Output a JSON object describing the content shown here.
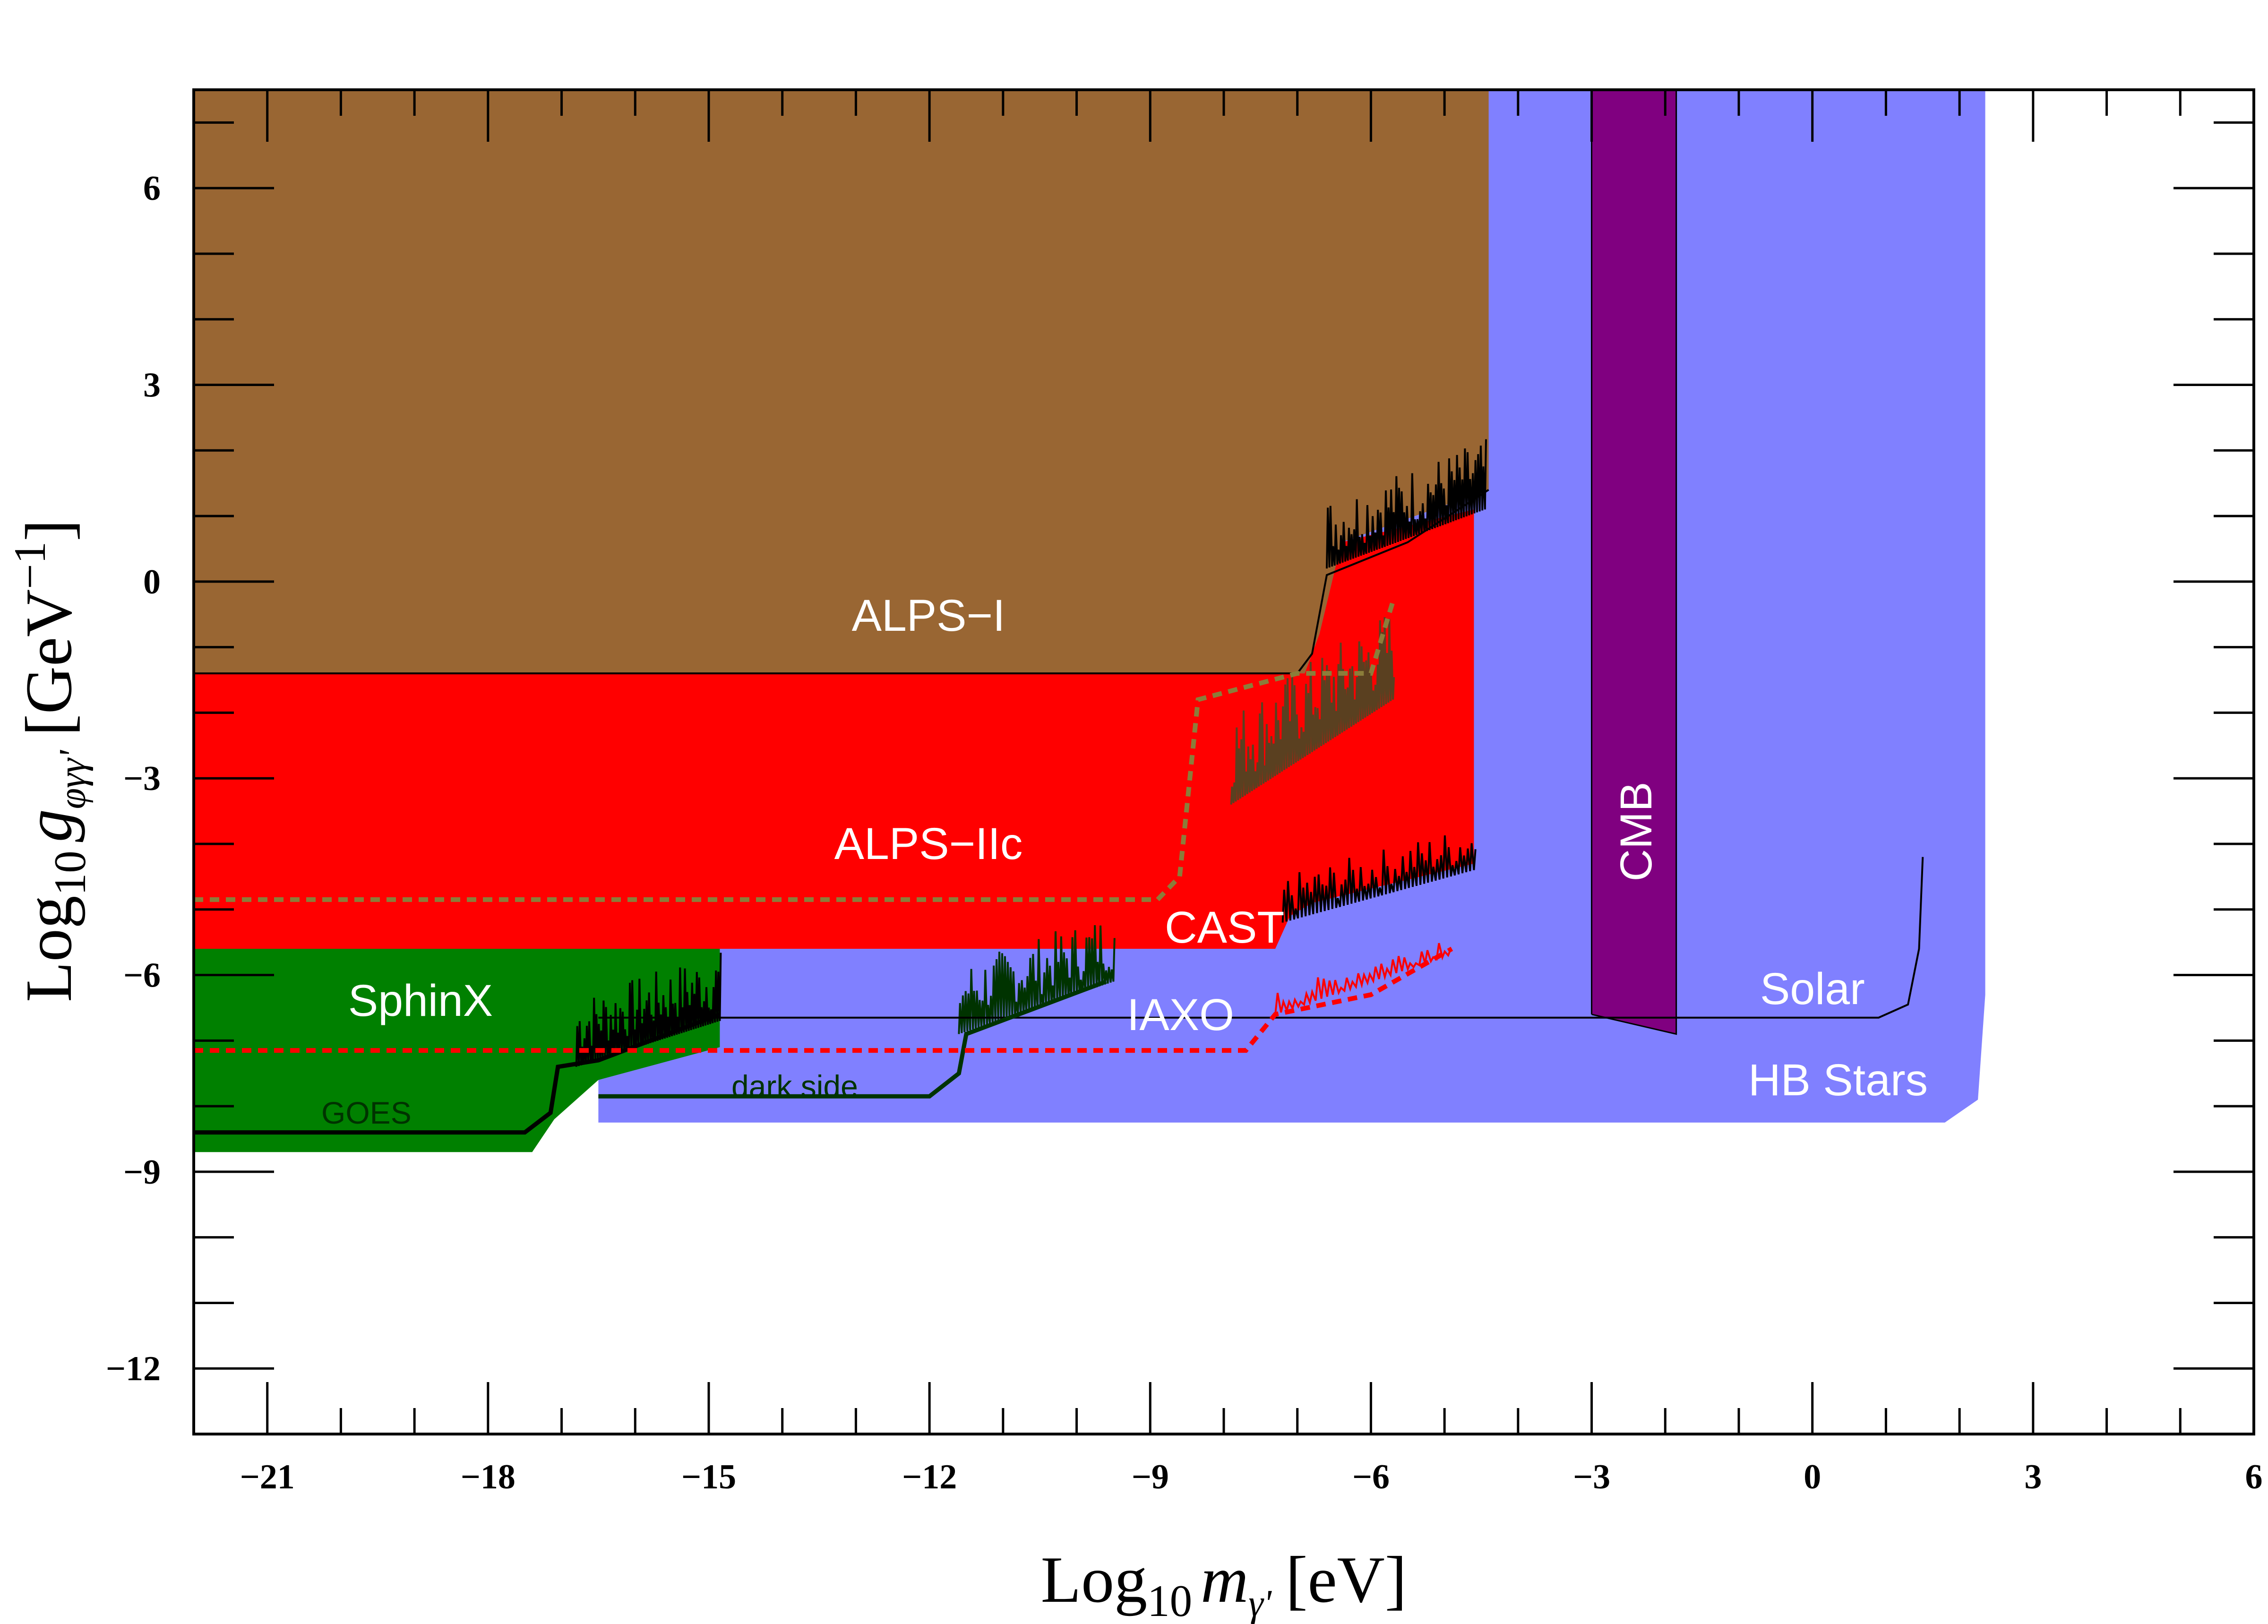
{
  "chart_data": {
    "type": "area",
    "title": "",
    "xlabel": {
      "prefix": "Log",
      "sub": "10",
      "var": "m",
      "varsub": "γ'",
      "unit": "[eV]"
    },
    "ylabel": {
      "prefix": "Log",
      "sub": "10",
      "var": "g",
      "varsub": "φγγ'",
      "unit_open": "[GeV",
      "unit_exp": "−1",
      "unit_close": "]"
    },
    "xlim": [
      -22,
      6
    ],
    "ylim": [
      -13,
      7.5
    ],
    "x_ticks": [
      {
        "value": -21,
        "label": "−21"
      },
      {
        "value": -18,
        "label": "−18"
      },
      {
        "value": -15,
        "label": "−15"
      },
      {
        "value": -12,
        "label": "−12"
      },
      {
        "value": -9,
        "label": "−9"
      },
      {
        "value": -6,
        "label": "−6"
      },
      {
        "value": -3,
        "label": "−3"
      },
      {
        "value": 0,
        "label": "0"
      },
      {
        "value": 3,
        "label": "3"
      },
      {
        "value": 6,
        "label": "6"
      }
    ],
    "y_ticks": [
      {
        "value": 6,
        "label": "6"
      },
      {
        "value": 3,
        "label": "3"
      },
      {
        "value": 0,
        "label": "0"
      },
      {
        "value": -3,
        "label": "−3"
      },
      {
        "value": -6,
        "label": "−6"
      },
      {
        "value": -9,
        "label": "−9"
      },
      {
        "value": -12,
        "label": "−12"
      }
    ],
    "regions": [
      {
        "name": "HB Stars",
        "color": "#8080ff",
        "polygon": [
          [
            -16.5,
            7.5
          ],
          [
            2.35,
            7.5
          ],
          [
            2.35,
            -6.3
          ],
          [
            2.25,
            -7.9
          ],
          [
            1.8,
            -8.25
          ],
          [
            -16.5,
            -8.25
          ]
        ]
      },
      {
        "name": "ALPS-I",
        "color": "#996633",
        "polygon": [
          [
            -22,
            7.5
          ],
          [
            -4.4,
            7.5
          ],
          [
            -4.4,
            1.4
          ],
          [
            -6.4,
            0.6
          ],
          [
            -6.7,
            -0.8
          ],
          [
            -6.9,
            -1.4
          ],
          [
            -22,
            -1.4
          ]
        ]
      },
      {
        "name": "ALPS-IIc",
        "color": "#ff0000",
        "polygon": [
          [
            -22,
            -1.4
          ],
          [
            -6.9,
            -1.4
          ],
          [
            -6.7,
            -0.8
          ],
          [
            -6.4,
            0.6
          ],
          [
            -4.6,
            1.1
          ],
          [
            -4.6,
            -4.3
          ],
          [
            -6.8,
            -4.9
          ],
          [
            -7.1,
            -5.1
          ],
          [
            -7.3,
            -5.6
          ],
          [
            -22,
            -5.6
          ]
        ]
      },
      {
        "name": "SphinX",
        "color": "#008000",
        "polygon": [
          [
            -22,
            -5.6
          ],
          [
            -14.85,
            -5.6
          ],
          [
            -14.85,
            -7.1
          ],
          [
            -16.5,
            -7.6
          ],
          [
            -17.1,
            -8.2
          ],
          [
            -17.4,
            -8.7
          ],
          [
            -22,
            -8.7
          ]
        ]
      },
      {
        "name": "CMB",
        "color": "#800080",
        "polygon": [
          [
            -3,
            7.5
          ],
          [
            -1.85,
            7.5
          ],
          [
            -1.85,
            -6.9
          ],
          [
            -3,
            -6.6
          ]
        ]
      }
    ],
    "series": [
      {
        "name": "CAST",
        "color": "#000000",
        "style": "solid",
        "points": [
          [
            -22,
            -1.4
          ],
          [
            -7.0,
            -1.4
          ],
          [
            -6.8,
            -1.1
          ],
          [
            -6.6,
            0.1
          ],
          [
            -5.5,
            0.6
          ],
          [
            -4.4,
            1.4
          ]
        ]
      },
      {
        "name": "Solar",
        "color": "#000000",
        "style": "solid",
        "points": [
          [
            -16.5,
            -6.65
          ],
          [
            0.9,
            -6.65
          ],
          [
            1.3,
            -6.45
          ],
          [
            1.45,
            -5.6
          ],
          [
            1.5,
            -4.2
          ]
        ]
      },
      {
        "name": "GOES",
        "color": "#000000",
        "style": "solid",
        "points": [
          [
            -22,
            -8.4
          ],
          [
            -17.5,
            -8.4
          ],
          [
            -17.15,
            -8.1
          ],
          [
            -17.05,
            -7.4
          ],
          [
            -16.5,
            -7.3
          ],
          [
            -14.85,
            -6.6
          ]
        ]
      },
      {
        "name": "dark side",
        "color": "#003300",
        "style": "solid",
        "points": [
          [
            -16.5,
            -7.85
          ],
          [
            -12.0,
            -7.85
          ],
          [
            -11.6,
            -7.5
          ],
          [
            -11.5,
            -6.9
          ],
          [
            -9.6,
            -6.1
          ]
        ]
      },
      {
        "name": "",
        "color": "#8b7d3a",
        "style": "dashed",
        "points": [
          [
            -22,
            -4.85
          ],
          [
            -8.9,
            -4.85
          ],
          [
            -8.6,
            -4.5
          ],
          [
            -8.35,
            -1.8
          ],
          [
            -7.0,
            -1.4
          ],
          [
            -6.0,
            -1.4
          ],
          [
            -5.7,
            -0.3
          ]
        ]
      },
      {
        "name": "IAXO",
        "color": "#ff0000",
        "style": "dashed",
        "points": [
          [
            -22,
            -7.15
          ],
          [
            -7.7,
            -7.15
          ],
          [
            -7.3,
            -6.6
          ],
          [
            -6.0,
            -6.3
          ],
          [
            -4.9,
            -5.6
          ]
        ]
      }
    ],
    "labels": {
      "alps1": "ALPS−I",
      "alps2": "ALPS−IIc",
      "cast": "CAST",
      "sphinx": "SphinX",
      "iaxo": "IAXO",
      "solar": "Solar",
      "hb": "HB Stars",
      "cmb": "CMB",
      "goes": "GOES",
      "darkside": "dark side"
    },
    "grid": false,
    "legend": "none"
  }
}
